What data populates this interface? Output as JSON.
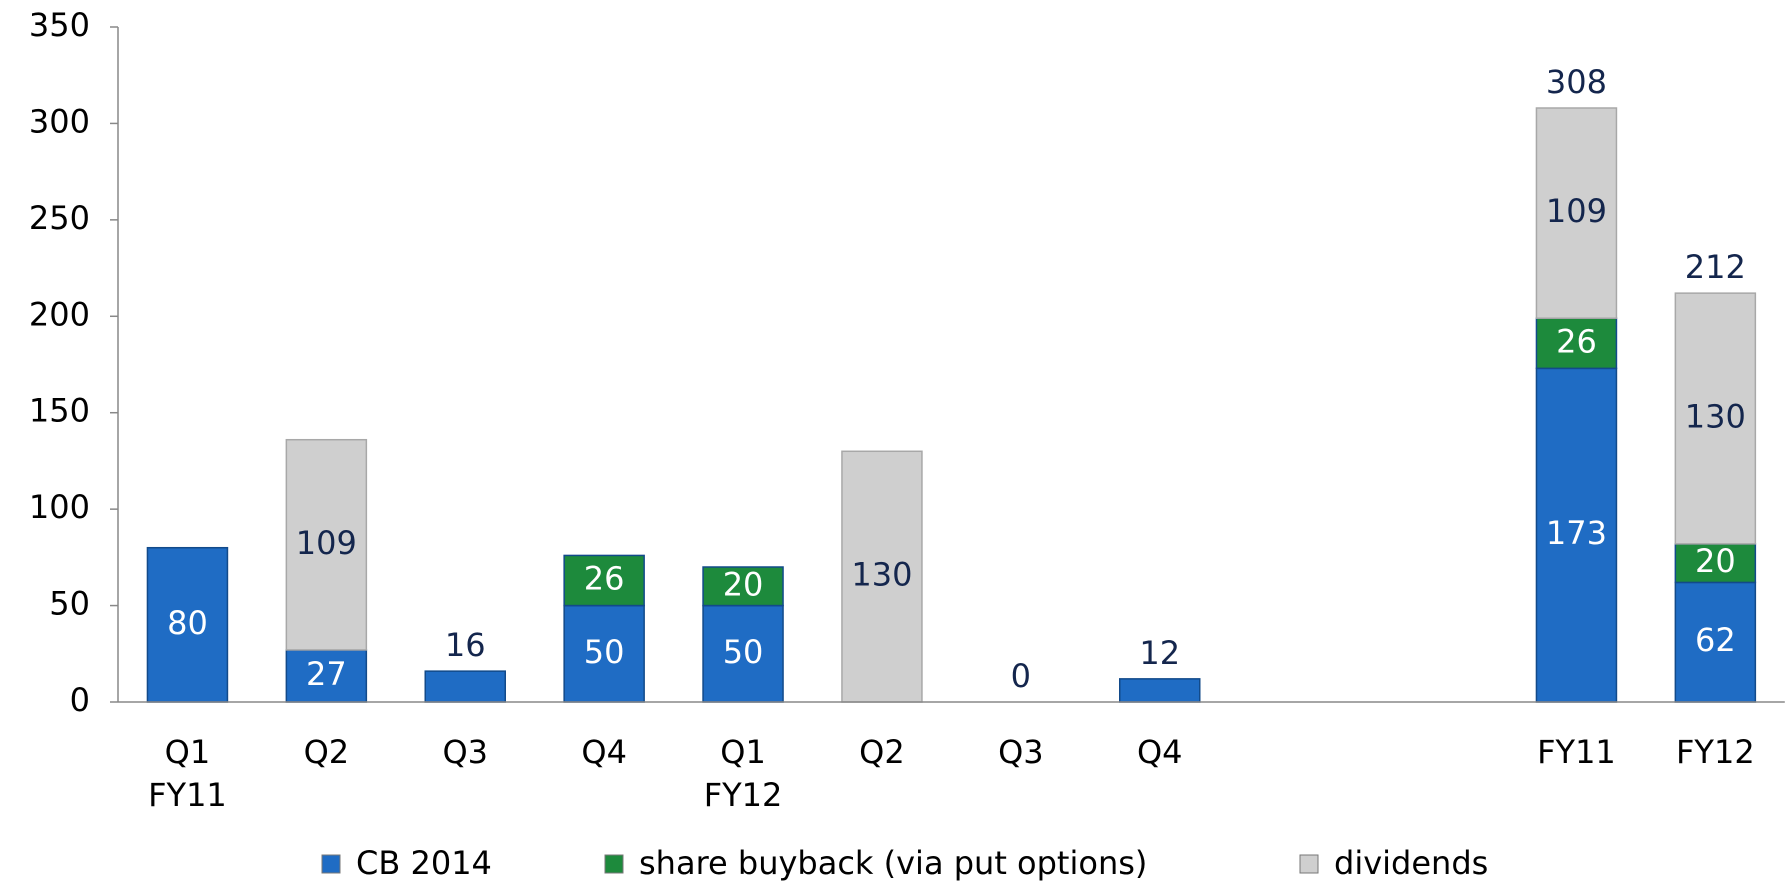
{
  "chart_data": {
    "type": "stacked_bar",
    "categories": [
      "Q1\nFY11",
      "Q2",
      "Q3",
      "Q4",
      "Q1\nFY12",
      "Q2",
      "Q3",
      "Q4",
      null,
      null,
      "FY11",
      "FY12"
    ],
    "series": [
      {
        "name": "CB 2014",
        "color": "#1f6cc4",
        "values": [
          80,
          27,
          16,
          50,
          50,
          null,
          0,
          12,
          null,
          null,
          173,
          62
        ]
      },
      {
        "name": "share buyback (via put options)",
        "color": "#1d8a3c",
        "values": [
          null,
          null,
          null,
          26,
          20,
          null,
          null,
          null,
          null,
          null,
          26,
          20
        ]
      },
      {
        "name": "dividends",
        "color": "#cfcfcf",
        "values": [
          null,
          109,
          null,
          null,
          null,
          130,
          null,
          null,
          null,
          null,
          109,
          130
        ]
      }
    ],
    "totals": [
      null,
      null,
      null,
      null,
      null,
      null,
      null,
      null,
      null,
      null,
      308,
      212
    ],
    "ylim": [
      0,
      350
    ],
    "yticks": [
      0,
      50,
      100,
      150,
      200,
      250,
      300,
      350
    ],
    "legend": "bottom",
    "grid": false
  }
}
